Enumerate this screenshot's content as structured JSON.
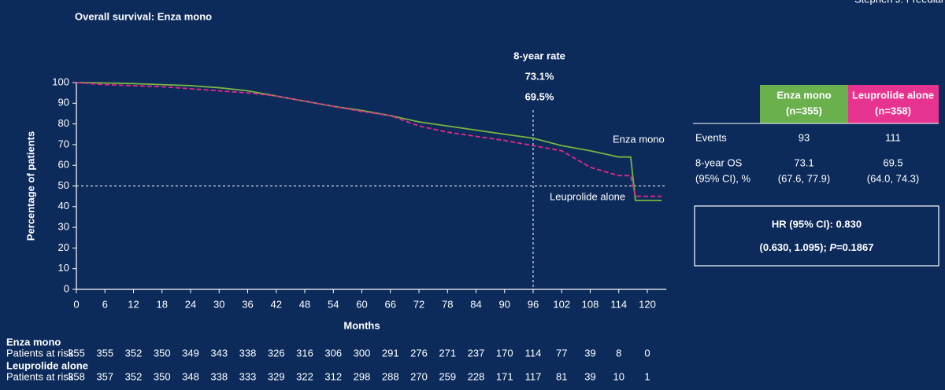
{
  "presenter": "Stephen J. Freedland,",
  "title": "Overall survival: Enza mono",
  "chart_data": {
    "type": "line",
    "x_label": "Months",
    "y_label": "Percentage of patients",
    "xlim": [
      0,
      124
    ],
    "xticks": [
      0,
      6,
      12,
      18,
      24,
      30,
      36,
      42,
      48,
      54,
      60,
      66,
      72,
      78,
      84,
      90,
      96,
      102,
      108,
      114,
      120
    ],
    "ylim": [
      0,
      100
    ],
    "yticks": [
      0,
      10,
      20,
      30,
      40,
      50,
      60,
      70,
      80,
      90,
      100
    ],
    "x": [
      0,
      6,
      12,
      18,
      24,
      30,
      36,
      42,
      48,
      54,
      60,
      66,
      72,
      78,
      84,
      90,
      96,
      102,
      108,
      114,
      116.5,
      117.5,
      123
    ],
    "series": [
      {
        "name": "Enza mono",
        "color": "#78b441",
        "dashed": false,
        "values": [
          100,
          99.8,
          99.5,
          99,
          98.5,
          97.5,
          96,
          93.5,
          91,
          88.5,
          86.5,
          84,
          81,
          79,
          77,
          75,
          73.1,
          69.5,
          67,
          64,
          64,
          43,
          43
        ]
      },
      {
        "name": "Leuprolide alone",
        "color": "#e3288c",
        "dashed": true,
        "values": [
          100,
          99,
          98.5,
          98,
          97,
          96,
          95,
          93.5,
          91,
          88.5,
          86,
          84,
          79,
          76,
          74,
          72,
          69.5,
          67,
          59,
          55,
          55,
          45,
          45
        ]
      }
    ],
    "reference_lines": {
      "x": 96,
      "y": 50
    },
    "annotation": {
      "title": "8-year rate",
      "labels": [
        "73.1%",
        "69.5%"
      ]
    },
    "risk_table": {
      "rows": [
        {
          "name": "Enza mono",
          "label": "Patients at risk",
          "values": [
            355,
            355,
            352,
            350,
            349,
            343,
            338,
            326,
            316,
            306,
            300,
            291,
            276,
            271,
            237,
            170,
            114,
            77,
            39,
            8,
            0
          ]
        },
        {
          "name": "Leuprolide alone",
          "label": "Patients at risk",
          "values": [
            358,
            357,
            352,
            350,
            348,
            338,
            333,
            329,
            322,
            312,
            298,
            288,
            270,
            259,
            228,
            171,
            117,
            81,
            39,
            10,
            1
          ]
        }
      ]
    }
  },
  "table": {
    "header": [
      {
        "title": "Enza mono",
        "n": "(n=355)"
      },
      {
        "title": "Leuprolide alone",
        "n": "(n=358)"
      }
    ],
    "rows": [
      {
        "label": [
          "Events"
        ],
        "cells": [
          [
            "93"
          ],
          [
            "111"
          ]
        ]
      },
      {
        "label": [
          "8-year OS",
          "(95% CI), %"
        ],
        "cells": [
          [
            "73.1",
            "(67.6, 77.9)"
          ],
          [
            "69.5",
            "(64.0, 74.3)"
          ]
        ]
      }
    ]
  },
  "hr_box": {
    "line1": "HR (95% CI): 0.830",
    "line2": "(0.630, 1.095); ",
    "p": "P",
    "p_value": "=0.1867"
  }
}
